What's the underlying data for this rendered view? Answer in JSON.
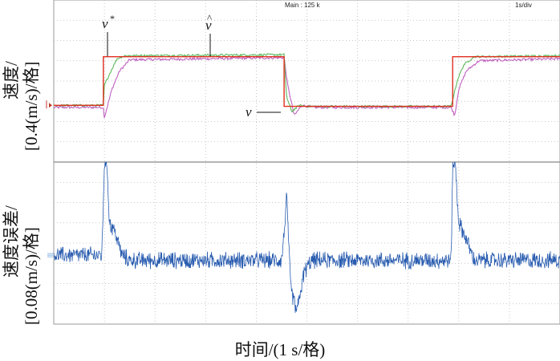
{
  "header": {
    "main_label": "Main : 125 k",
    "timebase_label": "1s/div"
  },
  "x_axis_label": "时间/(1 s/格)",
  "panels": {
    "speed": {
      "ylabel_line1": "速度/",
      "ylabel_line2": "[0.4(m/s)/格]",
      "annotations": {
        "reference": "v",
        "reference_sup": "*",
        "estimate": "v",
        "estimate_hat": "^",
        "actual": "v"
      }
    },
    "error": {
      "ylabel_line1": "速度误差/",
      "ylabel_line2": "[0.08(m/s)/格]"
    }
  },
  "chart_data": [
    {
      "type": "line",
      "title": "",
      "ylabel": "速度/[0.4(m/s)/格]",
      "xlabel": "时间/(1 s/格)",
      "x_unit": "s",
      "xlim": [
        0,
        10
      ],
      "y_unit": "div",
      "ylim": [
        0,
        8
      ],
      "grid": true,
      "series": [
        {
          "name": "v*",
          "color": "#e03020",
          "x": [
            0,
            0.98,
            0.98,
            4.55,
            4.55,
            7.88,
            7.88,
            10
          ],
          "y": [
            2.8,
            2.8,
            5.2,
            5.2,
            2.75,
            2.75,
            5.2,
            5.2
          ]
        },
        {
          "name": "v̂",
          "color": "#5cb85c",
          "x": [
            0,
            0.98,
            1.0,
            1.15,
            1.25,
            1.4,
            4.5,
            4.55,
            4.6,
            4.7,
            4.85,
            5.0,
            7.85,
            7.9,
            7.98,
            8.1,
            8.3,
            10
          ],
          "y": [
            2.8,
            2.8,
            3.8,
            4.6,
            5.1,
            5.25,
            5.3,
            5.3,
            3.2,
            2.5,
            2.8,
            2.75,
            2.75,
            3.3,
            4.1,
            4.8,
            5.2,
            5.25
          ]
        },
        {
          "name": "v",
          "color": "#c060c0",
          "x": [
            0,
            0.98,
            1.0,
            1.15,
            1.3,
            1.5,
            4.5,
            4.55,
            4.62,
            4.75,
            4.9,
            5.1,
            7.85,
            7.92,
            8.0,
            8.15,
            8.4,
            10
          ],
          "y": [
            2.7,
            2.7,
            2.2,
            3.6,
            4.5,
            5.05,
            5.15,
            5.15,
            3.8,
            2.3,
            2.8,
            2.7,
            2.7,
            2.3,
            3.6,
            4.5,
            5.0,
            5.1
          ]
        }
      ]
    },
    {
      "type": "line",
      "title": "",
      "ylabel": "速度误差/[0.08(m/s)/格]",
      "xlabel": "时间/(1 s/格)",
      "x_unit": "s",
      "xlim": [
        0,
        10
      ],
      "y_unit": "div",
      "ylim": [
        0,
        8
      ],
      "grid": true,
      "series": [
        {
          "name": "error",
          "color": "#2a5db0",
          "noise_amplitude_div": 0.35,
          "baseline_before_first_step_div": 3.4,
          "baseline_div": 3.15,
          "x": [
            0,
            0.95,
            1.0,
            1.05,
            1.1,
            1.2,
            1.35,
            1.5,
            4.5,
            4.55,
            4.6,
            4.68,
            4.8,
            4.95,
            5.1,
            7.85,
            7.88,
            7.93,
            8.0,
            8.15,
            8.3,
            10
          ],
          "y": [
            3.4,
            3.4,
            7.9,
            8.0,
            5.0,
            4.6,
            3.4,
            3.15,
            3.15,
            4.5,
            6.3,
            1.8,
            0.6,
            2.6,
            3.15,
            3.15,
            7.9,
            8.0,
            5.0,
            4.2,
            3.15,
            3.15
          ]
        }
      ]
    }
  ]
}
